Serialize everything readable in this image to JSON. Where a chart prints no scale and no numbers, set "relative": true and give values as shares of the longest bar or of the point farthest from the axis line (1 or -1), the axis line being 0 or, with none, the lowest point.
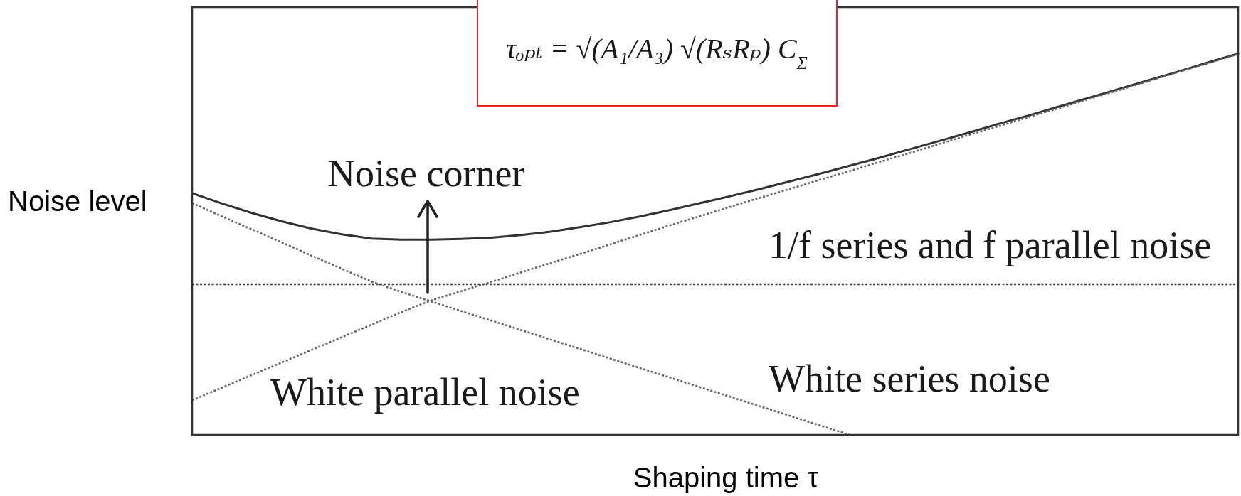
{
  "chart_data": {
    "type": "line",
    "relative": true,
    "tick_labels": false,
    "xlabel": "Shaping time τ",
    "ylabel": "Noise level",
    "annotations": [
      "τₒₚₜ = √(A₁/A₃) √(RₛRₚ) C$_{Σ}$",
      "Noise corner"
    ],
    "categories": [
      null,
      null,
      null,
      null,
      null,
      null,
      null,
      null,
      null,
      null,
      null,
      null,
      null,
      null,
      null,
      null,
      null,
      null,
      null,
      null,
      null,
      null,
      null,
      null,
      null,
      null,
      null,
      null,
      null,
      null,
      null,
      null,
      null,
      null,
      null,
      null
    ],
    "series": [
      {
        "color": "#333333",
        "line_style": "solid",
        "values": [
          0.634,
          0.607,
          0.582,
          0.56,
          0.541,
          0.526,
          0.515,
          0.512,
          0.512,
          0.514,
          0.517,
          0.524,
          0.533,
          0.545,
          0.558,
          0.573,
          0.59,
          0.608,
          0.626,
          0.645,
          0.665,
          0.685,
          0.706,
          0.727,
          0.749,
          0.771,
          0.793,
          0.816,
          0.838,
          0.861,
          0.884,
          0.907,
          0.93,
          0.953,
          0.977,
          1
        ]
      },
      {
        "name": "White series noise",
        "color": "#666666",
        "line_style": "dotted",
        "values": [
          0.608,
          0.573,
          0.539,
          0.505,
          0.47,
          0.436,
          0.402,
          0.375,
          0.35,
          0.325,
          0.3,
          0.275,
          0.25,
          0.225,
          0.2,
          0.175,
          0.15,
          0.125,
          0.1,
          0.075,
          0.05,
          0.025,
          0,
          null,
          null,
          null,
          null,
          null,
          null,
          null,
          null,
          null,
          null,
          null,
          null,
          null
        ]
      },
      {
        "name": "White parallel noise",
        "color": "#666666",
        "line_style": "dotted",
        "values": [
          0.091,
          0.124,
          0.157,
          0.19,
          0.223,
          0.256,
          0.289,
          0.322,
          0.353,
          0.377,
          0.401,
          0.426,
          0.451,
          0.475,
          0.5,
          0.525,
          0.55,
          0.574,
          0.598,
          0.622,
          0.645,
          0.669,
          0.692,
          0.716,
          0.739,
          0.763,
          0.787,
          0.81,
          0.834,
          0.857,
          0.881,
          0.904,
          0.928,
          0.952,
          0.975,
          0.999
        ]
      },
      {
        "name": "1/f series and f parallel noise",
        "color": "#444444",
        "line_style": "dotted",
        "values": [
          0.395,
          0.395,
          0.395,
          0.395,
          0.395,
          0.395,
          0.395,
          0.395,
          0.395,
          0.395,
          0.395,
          0.395,
          0.395,
          0.395,
          0.395,
          0.395,
          0.395,
          0.395,
          0.395,
          0.395,
          0.395,
          0.395,
          0.395,
          0.395,
          0.395,
          0.395,
          0.395,
          0.395,
          0.395,
          0.395,
          0.395,
          0.395,
          0.395,
          0.395,
          0.395,
          0.395
        ]
      }
    ]
  }
}
